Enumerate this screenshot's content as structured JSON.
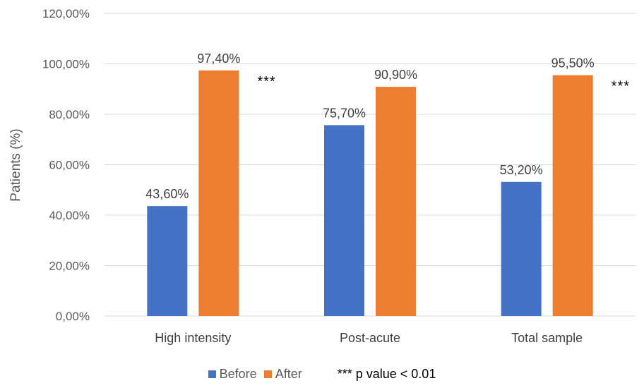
{
  "chart_data": {
    "type": "bar",
    "categories": [
      "High intensity",
      "Post-acute",
      "Total sample"
    ],
    "series": [
      {
        "name": "Before",
        "color": "#4472c4",
        "values": [
          43.6,
          75.7,
          53.2
        ],
        "labels": [
          "43,60%",
          "75,70%",
          "53,20%"
        ]
      },
      {
        "name": "After",
        "color": "#ed7d31",
        "values": [
          97.4,
          90.9,
          95.5
        ],
        "labels": [
          "97,40%",
          "90,90%",
          "95,50%"
        ]
      }
    ],
    "ylabel": "Patients (%)",
    "ylim": [
      0,
      120
    ],
    "yticks": [
      0,
      20,
      40,
      60,
      80,
      100,
      120
    ],
    "ytick_labels": [
      "0,00%",
      "20,00%",
      "40,00%",
      "60,00%",
      "80,00%",
      "100,00%",
      "120,00%"
    ],
    "grid": true,
    "legend_position": "bottom",
    "significance": {
      "marker": "***",
      "categories": [
        "High intensity",
        "Total sample"
      ]
    },
    "note": "*** p value < 0.01"
  }
}
